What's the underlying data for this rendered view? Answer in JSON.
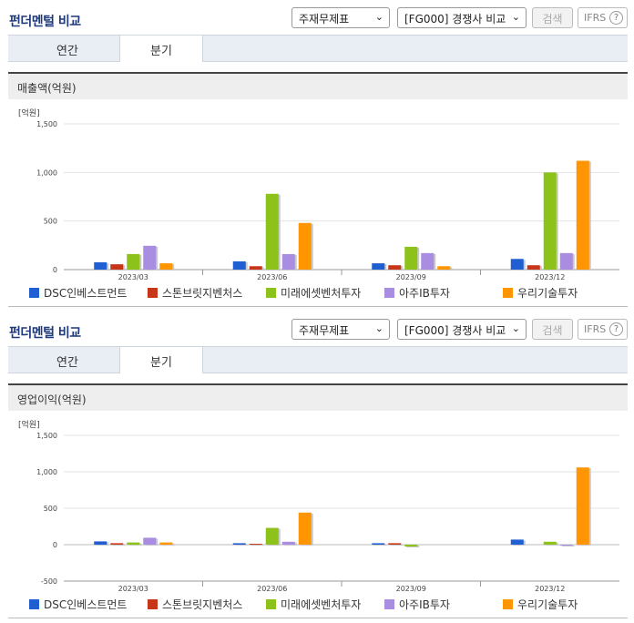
{
  "colors": {
    "series": [
      "#1f5fd1",
      "#c8361a",
      "#8cc21a",
      "#a98de0",
      "#ff9500"
    ],
    "tab_bg": "#e9eef5",
    "title": "#1f3a7a"
  },
  "panels": [
    {
      "title": "펀더멘털 비교",
      "select_statement": "주재무제표",
      "select_compare": "[FG000] 경쟁사 비교",
      "search_label": "검색",
      "ifrs_label": "IFRS",
      "help_glyph": "?",
      "tabs": [
        "연간",
        "분기"
      ],
      "chart_title": "매출액(억원)",
      "unit": "[억원]"
    },
    {
      "title": "펀더멘털 비교",
      "select_statement": "주재무제표",
      "select_compare": "[FG000] 경쟁사 비교",
      "search_label": "검색",
      "ifrs_label": "IFRS",
      "help_glyph": "?",
      "tabs": [
        "연간",
        "분기"
      ],
      "chart_title": "영업이익(억원)",
      "unit": "[억원]"
    }
  ],
  "chart_data": [
    {
      "type": "bar",
      "title": "매출액(억원)",
      "categories": [
        "2023/03",
        "2023/06",
        "2023/09",
        "2023/12"
      ],
      "series": [
        {
          "name": "DSC인베스트먼트",
          "values": [
            75,
            85,
            65,
            110
          ]
        },
        {
          "name": "스톤브릿지벤처스",
          "values": [
            55,
            35,
            45,
            45
          ]
        },
        {
          "name": "미래에셋벤처투자",
          "values": [
            160,
            780,
            235,
            1000
          ]
        },
        {
          "name": "아주IB투자",
          "values": [
            245,
            160,
            170,
            170
          ]
        },
        {
          "name": "우리기술투자",
          "values": [
            65,
            480,
            35,
            1120
          ]
        }
      ],
      "ylim": [
        0,
        1500
      ],
      "yticks": [
        0,
        500,
        1000,
        1500
      ],
      "ytick_labels": [
        "0",
        "500",
        "1,000",
        "1,500"
      ],
      "ylabel": "[억원]",
      "legend": "bottom"
    },
    {
      "type": "bar",
      "title": "영업이익(억원)",
      "categories": [
        "2023/03",
        "2023/06",
        "2023/09",
        "2023/12"
      ],
      "series": [
        {
          "name": "DSC인베스트먼트",
          "values": [
            45,
            20,
            20,
            70
          ]
        },
        {
          "name": "스톤브릿지벤처스",
          "values": [
            20,
            12,
            20,
            0
          ]
        },
        {
          "name": "미래에셋벤처투자",
          "values": [
            30,
            230,
            -25,
            40
          ]
        },
        {
          "name": "아주IB투자",
          "values": [
            95,
            40,
            0,
            -10
          ]
        },
        {
          "name": "우리기술투자",
          "values": [
            30,
            440,
            0,
            1060
          ]
        }
      ],
      "ylim": [
        -500,
        1500
      ],
      "yticks": [
        -500,
        0,
        500,
        1000,
        1500
      ],
      "ytick_labels": [
        "-500",
        "0",
        "500",
        "1,000",
        "1,500"
      ],
      "ylabel": "[억원]",
      "legend": "bottom"
    }
  ]
}
